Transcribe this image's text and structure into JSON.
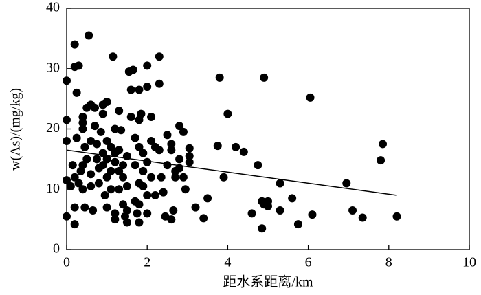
{
  "chart_data": {
    "type": "scatter",
    "x_label": "距水系距离/km",
    "y_label": "w(As)/(mg/kg)",
    "xlim": [
      0,
      10
    ],
    "xticks": [
      0,
      2,
      4,
      6,
      8,
      10
    ],
    "ylim": [
      0,
      40
    ],
    "yticks": [
      0,
      10,
      20,
      30,
      40
    ],
    "color": "#000000",
    "x": [
      0,
      0,
      0,
      0,
      0,
      0.2,
      0.2,
      0.3,
      0.25,
      0.15,
      0.1,
      0.2,
      0.2,
      0.2,
      0.25,
      0.3,
      0.35,
      0.4,
      0.4,
      0.4,
      0.4,
      0.45,
      0.4,
      0.45,
      0.5,
      0.55,
      0.5,
      0.6,
      0.6,
      0.6,
      0.6,
      0.65,
      0.7,
      0.7,
      0.75,
      0.75,
      0.8,
      0.8,
      0.85,
      0.9,
      0.9,
      0.9,
      0.9,
      0.95,
      1.0,
      1.0,
      1.0,
      1.0,
      1.0,
      1.1,
      1.1,
      1.1,
      1.15,
      1.2,
      1.2,
      1.2,
      1.2,
      1.2,
      1.3,
      1.3,
      1.3,
      1.3,
      1.35,
      1.4,
      1.4,
      1.4,
      1.45,
      1.5,
      1.5,
      1.5,
      1.5,
      1.55,
      1.6,
      1.6,
      1.65,
      1.7,
      1.7,
      1.7,
      1.75,
      1.8,
      1.8,
      1.8,
      1.8,
      1.8,
      1.8,
      1.85,
      1.9,
      1.9,
      1.9,
      2.0,
      2.0,
      2.0,
      2.0,
      2.0,
      2.1,
      2.1,
      2.1,
      2.2,
      2.2,
      2.3,
      2.3,
      2.3,
      2.35,
      2.4,
      2.45,
      2.5,
      2.5,
      2.6,
      2.6,
      2.6,
      2.65,
      2.7,
      2.7,
      2.8,
      2.8,
      2.8,
      2.9,
      2.9,
      2.95,
      3.05,
      3.05,
      3.05,
      3.2,
      3.4,
      3.5,
      3.75,
      3.8,
      3.9,
      4.0,
      4.2,
      4.4,
      4.6,
      4.75,
      4.85,
      4.85,
      4.9,
      4.9,
      5.0,
      5.0,
      5.3,
      5.3,
      5.6,
      5.75,
      6.05,
      6.1,
      6.95,
      7.1,
      7.35,
      7.8,
      7.85,
      8.2
    ],
    "values": [
      28,
      21.5,
      18,
      11.5,
      5.5,
      34,
      30.3,
      30.5,
      26,
      14,
      10.5,
      12,
      7,
      4.2,
      18.5,
      11,
      13,
      14,
      21,
      22,
      20,
      17,
      10,
      7,
      15,
      35.5,
      23.5,
      24,
      18,
      12.5,
      10.5,
      6.5,
      23.5,
      20.5,
      17.5,
      15,
      13.5,
      11,
      19.5,
      24,
      22.5,
      16,
      14,
      9,
      24.5,
      18,
      15,
      12,
      7,
      17,
      13,
      10,
      32,
      20,
      16,
      14.5,
      6,
      5,
      23,
      16.5,
      13,
      10,
      19.8,
      14,
      12,
      7.5,
      5.5,
      15.5,
      10.5,
      6.5,
      4.5,
      29.5,
      26.5,
      22,
      29.8,
      18.5,
      14,
      8,
      6,
      26.5,
      21.5,
      17,
      11,
      7.5,
      4.5,
      22.5,
      13,
      10.5,
      16,
      27,
      30.5,
      14.5,
      9,
      6,
      22,
      12,
      18,
      17,
      9,
      27.5,
      32,
      16.5,
      12,
      9.5,
      5.5,
      19,
      14,
      17.5,
      16.5,
      5,
      6.5,
      13,
      12,
      20.5,
      13.5,
      15,
      19.5,
      12,
      10,
      16.8,
      15.5,
      14.5,
      7,
      5.2,
      8.5,
      17.2,
      28.5,
      12,
      22.5,
      17,
      16.2,
      6,
      14,
      3.5,
      8,
      28.5,
      7.5,
      8,
      7.2,
      11,
      6.5,
      8.5,
      4.2,
      25.2,
      5.8,
      11,
      6.5,
      5.3,
      14.8,
      17.5,
      5.5
    ],
    "trend_line": {
      "x": [
        0,
        8.2
      ],
      "values": [
        16.5,
        9
      ]
    }
  }
}
